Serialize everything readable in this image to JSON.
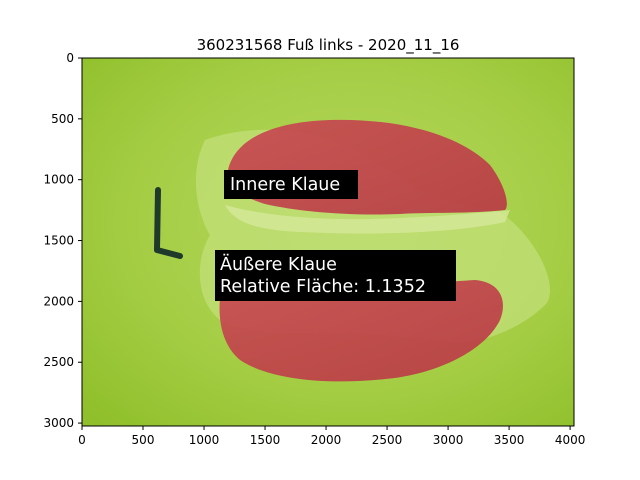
{
  "chart_data": {
    "type": "image",
    "title": "360231568 Fuß links - 2020_11_16",
    "xlim": [
      0,
      4032
    ],
    "ylim": [
      3024,
      0
    ],
    "x_ticks": [
      0,
      500,
      1000,
      1500,
      2000,
      2500,
      3000,
      3500,
      4000
    ],
    "y_ticks": [
      0,
      500,
      1000,
      1500,
      2000,
      2500,
      3000
    ],
    "annotations": [
      {
        "id": "inner",
        "lines": [
          "Innere Klaue"
        ]
      },
      {
        "id": "outer",
        "lines": [
          "Äußere Klaue",
          "Relative Fläche: 1.1352"
        ]
      }
    ],
    "colors": {
      "background": "#9cc83a",
      "background_light": "#b4d65a",
      "overlay": "#c0404a",
      "label_box": "#000000"
    }
  }
}
